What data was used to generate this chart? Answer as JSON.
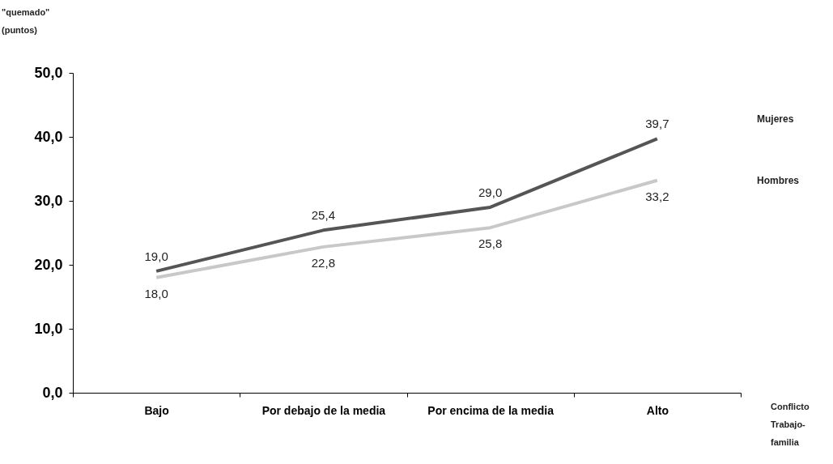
{
  "chart_data": {
    "type": "line",
    "ylabel": "\"quemado\" (puntos)",
    "xlabel": "Conflicto Trabajo- familia",
    "categories": [
      "Bajo",
      "Por debajo de la media",
      "Por encima de la media",
      "Alto"
    ],
    "series": [
      {
        "name": "Mujeres",
        "color": "#555555",
        "values": [
          19.0,
          25.4,
          29.0,
          39.7
        ],
        "value_labels": [
          "19,0",
          "25,4",
          "29,0",
          "39,7"
        ]
      },
      {
        "name": "Hombres",
        "color": "#c8c8c8",
        "values": [
          18.0,
          22.8,
          25.8,
          33.2
        ],
        "value_labels": [
          "18,0",
          "22,8",
          "25,8",
          "33,2"
        ]
      }
    ],
    "ylim": [
      0,
      50
    ],
    "yticks": [
      {
        "value": 0,
        "label": "0,0"
      },
      {
        "value": 10,
        "label": "10,0"
      },
      {
        "value": 20,
        "label": "20,0"
      },
      {
        "value": 30,
        "label": "30,0"
      },
      {
        "value": 40,
        "label": "40,0"
      },
      {
        "value": 50,
        "label": "50,0"
      }
    ],
    "grid": false,
    "legend": false,
    "marker": "none",
    "line_style": "solid"
  }
}
